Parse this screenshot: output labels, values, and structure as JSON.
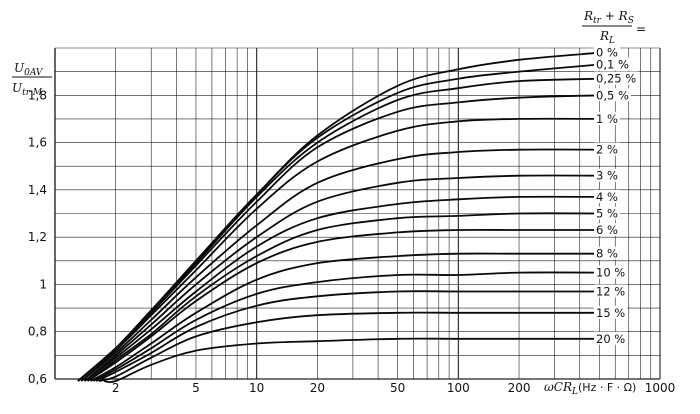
{
  "chart_data": {
    "type": "line",
    "x_scale": "log",
    "y_scale": "linear",
    "xlim": [
      1,
      1000
    ],
    "ylim": [
      0.6,
      2.0
    ],
    "grid": true,
    "x_ticks": [
      {
        "v": 2,
        "label": "2"
      },
      {
        "v": 5,
        "label": "5"
      },
      {
        "v": 10,
        "label": "10"
      },
      {
        "v": 20,
        "label": "20"
      },
      {
        "v": 50,
        "label": "50"
      },
      {
        "v": 100,
        "label": "100"
      },
      {
        "v": 200,
        "label": "200"
      },
      {
        "v": 1000,
        "label": "1000"
      }
    ],
    "y_ticks": [
      {
        "v": 0.6,
        "label": "0,6"
      },
      {
        "v": 0.8,
        "label": "0,8"
      },
      {
        "v": 1.0,
        "label": "1"
      },
      {
        "v": 1.2,
        "label": "1,2"
      },
      {
        "v": 1.4,
        "label": "1,4"
      },
      {
        "v": 1.6,
        "label": "1,6"
      },
      {
        "v": 1.8,
        "label": "1,8"
      }
    ],
    "y_axis_label": {
      "num": "U",
      "num_sub": "0AV",
      "den": "U",
      "den_sub": "tr M"
    },
    "x_axis_label": {
      "pre": "ωCR",
      "sub": "L",
      "post": "(Hz · F · Ω)"
    },
    "legend_title": {
      "num": "R",
      "num_sub1": "tr",
      "mid": " + R",
      "num_sub2": "S",
      "den": "R",
      "den_sub": "L",
      "eq": "="
    },
    "series": [
      {
        "name": "0 %",
        "x": [
          1.3,
          2,
          3,
          5,
          10,
          20,
          50,
          100,
          200,
          500
        ],
        "y": [
          0.57,
          0.73,
          0.89,
          1.1,
          1.38,
          1.63,
          1.84,
          1.91,
          1.95,
          1.98
        ]
      },
      {
        "name": "0,1 %",
        "x": [
          1.3,
          2,
          3,
          5,
          10,
          20,
          50,
          100,
          200,
          500
        ],
        "y": [
          0.57,
          0.73,
          0.89,
          1.1,
          1.38,
          1.62,
          1.81,
          1.87,
          1.9,
          1.93
        ]
      },
      {
        "name": "0,25 %",
        "x": [
          1.3,
          2,
          3,
          5,
          10,
          20,
          50,
          100,
          200,
          500
        ],
        "y": [
          0.57,
          0.73,
          0.89,
          1.09,
          1.37,
          1.6,
          1.78,
          1.83,
          1.86,
          1.87
        ]
      },
      {
        "name": "0,5 %",
        "x": [
          1.3,
          2,
          3,
          5,
          10,
          20,
          50,
          100,
          200,
          500
        ],
        "y": [
          0.57,
          0.73,
          0.88,
          1.08,
          1.35,
          1.58,
          1.73,
          1.77,
          1.79,
          1.8
        ]
      },
      {
        "name": "1 %",
        "x": [
          1.35,
          2,
          3,
          5,
          10,
          20,
          50,
          100,
          200,
          500
        ],
        "y": [
          0.57,
          0.72,
          0.87,
          1.06,
          1.32,
          1.52,
          1.65,
          1.69,
          1.7,
          1.7
        ]
      },
      {
        "name": "2 %",
        "x": [
          1.35,
          2,
          3,
          5,
          10,
          20,
          50,
          100,
          200,
          500
        ],
        "y": [
          0.57,
          0.71,
          0.85,
          1.03,
          1.25,
          1.43,
          1.53,
          1.56,
          1.57,
          1.57
        ]
      },
      {
        "name": "3 %",
        "x": [
          1.4,
          2,
          3,
          5,
          10,
          20,
          50,
          100,
          200,
          500
        ],
        "y": [
          0.57,
          0.7,
          0.83,
          1.0,
          1.2,
          1.35,
          1.43,
          1.45,
          1.46,
          1.46
        ]
      },
      {
        "name": "4 %",
        "x": [
          1.4,
          2,
          3,
          5,
          10,
          20,
          50,
          100,
          200,
          500
        ],
        "y": [
          0.57,
          0.69,
          0.81,
          0.97,
          1.16,
          1.28,
          1.34,
          1.36,
          1.37,
          1.37
        ]
      },
      {
        "name": "5 %",
        "x": [
          1.45,
          2,
          3,
          5,
          10,
          20,
          50,
          100,
          200,
          500
        ],
        "y": [
          0.57,
          0.68,
          0.79,
          0.95,
          1.12,
          1.23,
          1.28,
          1.29,
          1.3,
          1.3
        ]
      },
      {
        "name": "6 %",
        "x": [
          1.45,
          2,
          3,
          5,
          10,
          20,
          50,
          100,
          200,
          500
        ],
        "y": [
          0.57,
          0.67,
          0.78,
          0.93,
          1.09,
          1.18,
          1.22,
          1.23,
          1.23,
          1.23
        ]
      },
      {
        "name": "8 %",
        "x": [
          1.5,
          2,
          3,
          5,
          10,
          20,
          50,
          100,
          200,
          500
        ],
        "y": [
          0.57,
          0.65,
          0.75,
          0.88,
          1.02,
          1.09,
          1.12,
          1.13,
          1.13,
          1.13
        ]
      },
      {
        "name": "10 %",
        "x": [
          1.55,
          2,
          3,
          5,
          10,
          20,
          50,
          100,
          200,
          500
        ],
        "y": [
          0.57,
          0.64,
          0.73,
          0.85,
          0.96,
          1.01,
          1.04,
          1.04,
          1.05,
          1.05
        ]
      },
      {
        "name": "12 %",
        "x": [
          1.6,
          2,
          3,
          5,
          10,
          20,
          50,
          100,
          200,
          500
        ],
        "y": [
          0.57,
          0.63,
          0.71,
          0.82,
          0.91,
          0.95,
          0.97,
          0.97,
          0.97,
          0.97
        ]
      },
      {
        "name": "15 %",
        "x": [
          1.65,
          2,
          3,
          5,
          10,
          20,
          50,
          100,
          200,
          500
        ],
        "y": [
          0.57,
          0.61,
          0.69,
          0.78,
          0.84,
          0.87,
          0.88,
          0.88,
          0.88,
          0.88
        ]
      },
      {
        "name": "20 %",
        "x": [
          1.75,
          2,
          3,
          5,
          10,
          20,
          50,
          100,
          200,
          500
        ],
        "y": [
          0.57,
          0.59,
          0.66,
          0.72,
          0.75,
          0.76,
          0.77,
          0.77,
          0.77,
          0.77
        ]
      }
    ]
  }
}
